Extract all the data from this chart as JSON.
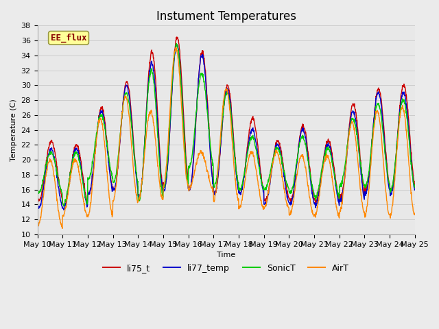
{
  "title": "Instument Temperatures",
  "xlabel": "Time",
  "ylabel": "Temperature (C)",
  "ylim": [
    10,
    38
  ],
  "xlim": [
    0,
    15
  ],
  "annotation_text": "EE_flux",
  "annotation_bg": "#FFFF99",
  "annotation_border": "#999944",
  "series_colors": {
    "li75_t": "#CC0000",
    "li77_temp": "#0000CC",
    "SonicT": "#00CC00",
    "AirT": "#FF8800"
  },
  "x_tick_labels": [
    "May 10",
    "May 11",
    "May 12",
    "May 13",
    "May 14",
    "May 15",
    "May 16",
    "May 17",
    "May 18",
    "May 19",
    "May 20",
    "May 21",
    "May 22",
    "May 23",
    "May 24",
    "May 25"
  ],
  "grid_color": "#CCCCCC",
  "bg_color": "#E8E8E8",
  "fig_bg_color": "#EBEBEB",
  "linewidth": 1.0,
  "title_fontsize": 12,
  "axis_fontsize": 8,
  "legend_fontsize": 9
}
